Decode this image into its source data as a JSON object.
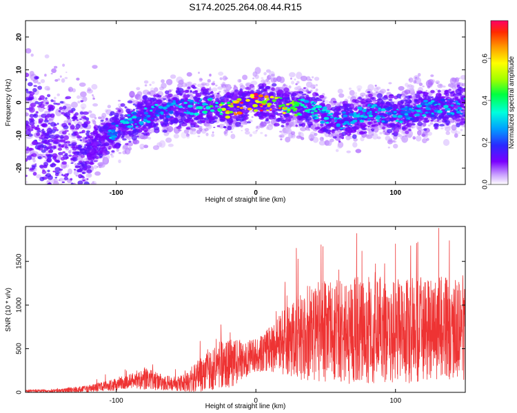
{
  "chart_data": [
    {
      "type": "heatmap",
      "title": "S174.2025.264.08.44.R15",
      "xlabel": "Height of straight line (km)",
      "ylabel": "Frequency (Hz)",
      "xlim": [
        -165,
        150
      ],
      "ylim": [
        -25,
        25
      ],
      "xticks": [
        -100,
        0,
        100
      ],
      "yticks": [
        -20,
        -10,
        0,
        10,
        20
      ],
      "xtick_labels": [
        "-100",
        "0",
        "100"
      ],
      "ytick_labels": [
        "-20",
        "-10",
        "0",
        "10",
        "20"
      ],
      "colorbar": {
        "label": "Normalized spectral amplitude",
        "range": [
          0.0,
          0.78
        ],
        "ticks": [
          0.0,
          0.2,
          0.4,
          0.6
        ],
        "tick_labels": [
          "0.0",
          "0.2",
          "0.4",
          "0.6"
        ]
      },
      "ridge_center_hz": {
        "x": [
          -165,
          -140,
          -120,
          -100,
          -80,
          -60,
          -40,
          -20,
          0,
          20,
          40,
          60,
          80,
          100,
          120,
          150
        ],
        "freq": [
          -6,
          -12,
          -15,
          -8,
          -4,
          -2,
          -1,
          -2,
          0,
          -1,
          -2,
          -6,
          -3,
          -4,
          -2,
          -1
        ]
      }
    },
    {
      "type": "line",
      "xlabel": "Height of straight line (km)",
      "ylabel": "SNR (10 * v/v)",
      "xlim": [
        -165,
        150
      ],
      "ylim": [
        0,
        1900
      ],
      "xticks": [
        -100,
        0,
        100
      ],
      "yticks": [
        0,
        500,
        1000,
        1500
      ],
      "xtick_labels": [
        "-100",
        "0",
        "100"
      ],
      "ytick_labels": [
        "0",
        "500",
        "1000",
        "1500"
      ],
      "color": "#ee3333",
      "envelope": {
        "x": [
          -165,
          -140,
          -120,
          -100,
          -90,
          -80,
          -70,
          -60,
          -50,
          -40,
          -30,
          -20,
          -10,
          0,
          10,
          20,
          30,
          40,
          60,
          80,
          100,
          120,
          150
        ],
        "mean": [
          15,
          20,
          40,
          90,
          130,
          160,
          120,
          100,
          110,
          200,
          300,
          320,
          360,
          420,
          500,
          580,
          640,
          690,
          700,
          720,
          700,
          720,
          740
        ],
        "amp": [
          15,
          20,
          40,
          70,
          80,
          130,
          100,
          80,
          100,
          200,
          280,
          280,
          240,
          200,
          260,
          380,
          500,
          560,
          600,
          620,
          600,
          620,
          600
        ]
      },
      "peaks": [
        {
          "x": 131,
          "y": 1880
        },
        {
          "x": 116,
          "y": 1720
        },
        {
          "x": 100,
          "y": 1700
        },
        {
          "x": 48,
          "y": 1670
        },
        {
          "x": 29,
          "y": 1650
        }
      ]
    }
  ]
}
